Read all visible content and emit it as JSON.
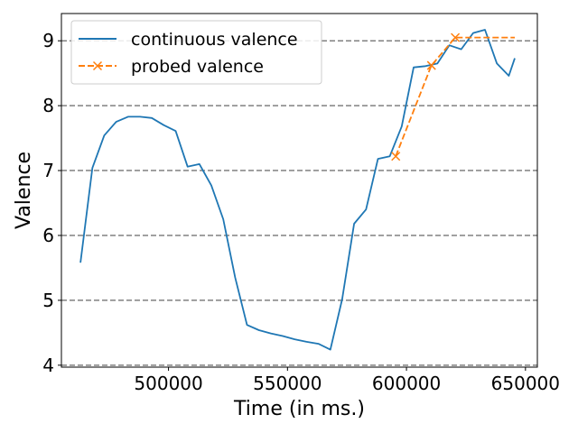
{
  "chart_data": {
    "type": "line",
    "xlabel": "Time (in ms.)",
    "ylabel": "Valence",
    "xlim": [
      455000,
      655000
    ],
    "ylim": [
      3.97,
      9.42
    ],
    "x_ticks": [
      500000,
      550000,
      600000,
      650000
    ],
    "x_tick_labels": [
      "500000",
      "550000",
      "600000",
      "650000"
    ],
    "y_ticks": [
      4,
      5,
      6,
      7,
      8,
      9
    ],
    "y_tick_labels": [
      "4",
      "5",
      "6",
      "7",
      "8",
      "9"
    ],
    "grid": "horizontal dashed at y ticks",
    "legend_position": "top-left",
    "series": [
      {
        "name": "continuous valence",
        "color": "#1f77b4",
        "style": "solid",
        "marker": "none",
        "points": [
          [
            463000,
            5.58
          ],
          [
            468000,
            7.04
          ],
          [
            473000,
            7.54
          ],
          [
            478000,
            7.75
          ],
          [
            483000,
            7.83
          ],
          [
            488000,
            7.83
          ],
          [
            493000,
            7.81
          ],
          [
            498000,
            7.7
          ],
          [
            503000,
            7.61
          ],
          [
            508000,
            7.06
          ],
          [
            513000,
            7.1
          ],
          [
            518000,
            6.77
          ],
          [
            523000,
            6.25
          ],
          [
            528000,
            5.35
          ],
          [
            533000,
            4.62
          ],
          [
            538000,
            4.54
          ],
          [
            543000,
            4.49
          ],
          [
            548000,
            4.45
          ],
          [
            553000,
            4.4
          ],
          [
            558000,
            4.36
          ],
          [
            563000,
            4.33
          ],
          [
            568000,
            4.24
          ],
          [
            573000,
            5.02
          ],
          [
            578000,
            6.18
          ],
          [
            583000,
            6.4
          ],
          [
            588000,
            7.18
          ],
          [
            593000,
            7.22
          ],
          [
            598000,
            7.68
          ],
          [
            603000,
            8.59
          ],
          [
            608000,
            8.61
          ],
          [
            613000,
            8.65
          ],
          [
            618000,
            8.93
          ],
          [
            623000,
            8.87
          ],
          [
            628000,
            9.12
          ],
          [
            633000,
            9.17
          ],
          [
            638000,
            8.65
          ],
          [
            643000,
            8.46
          ],
          [
            645500,
            8.73
          ]
        ]
      },
      {
        "name": "probed valence",
        "color": "#ff7f0e",
        "style": "dashed",
        "marker": "x",
        "points": [
          [
            595500,
            7.22
          ],
          [
            610500,
            8.62
          ],
          [
            620500,
            9.05
          ],
          [
            645500,
            9.05
          ]
        ],
        "marker_indices": [
          0,
          1,
          2
        ]
      }
    ]
  }
}
